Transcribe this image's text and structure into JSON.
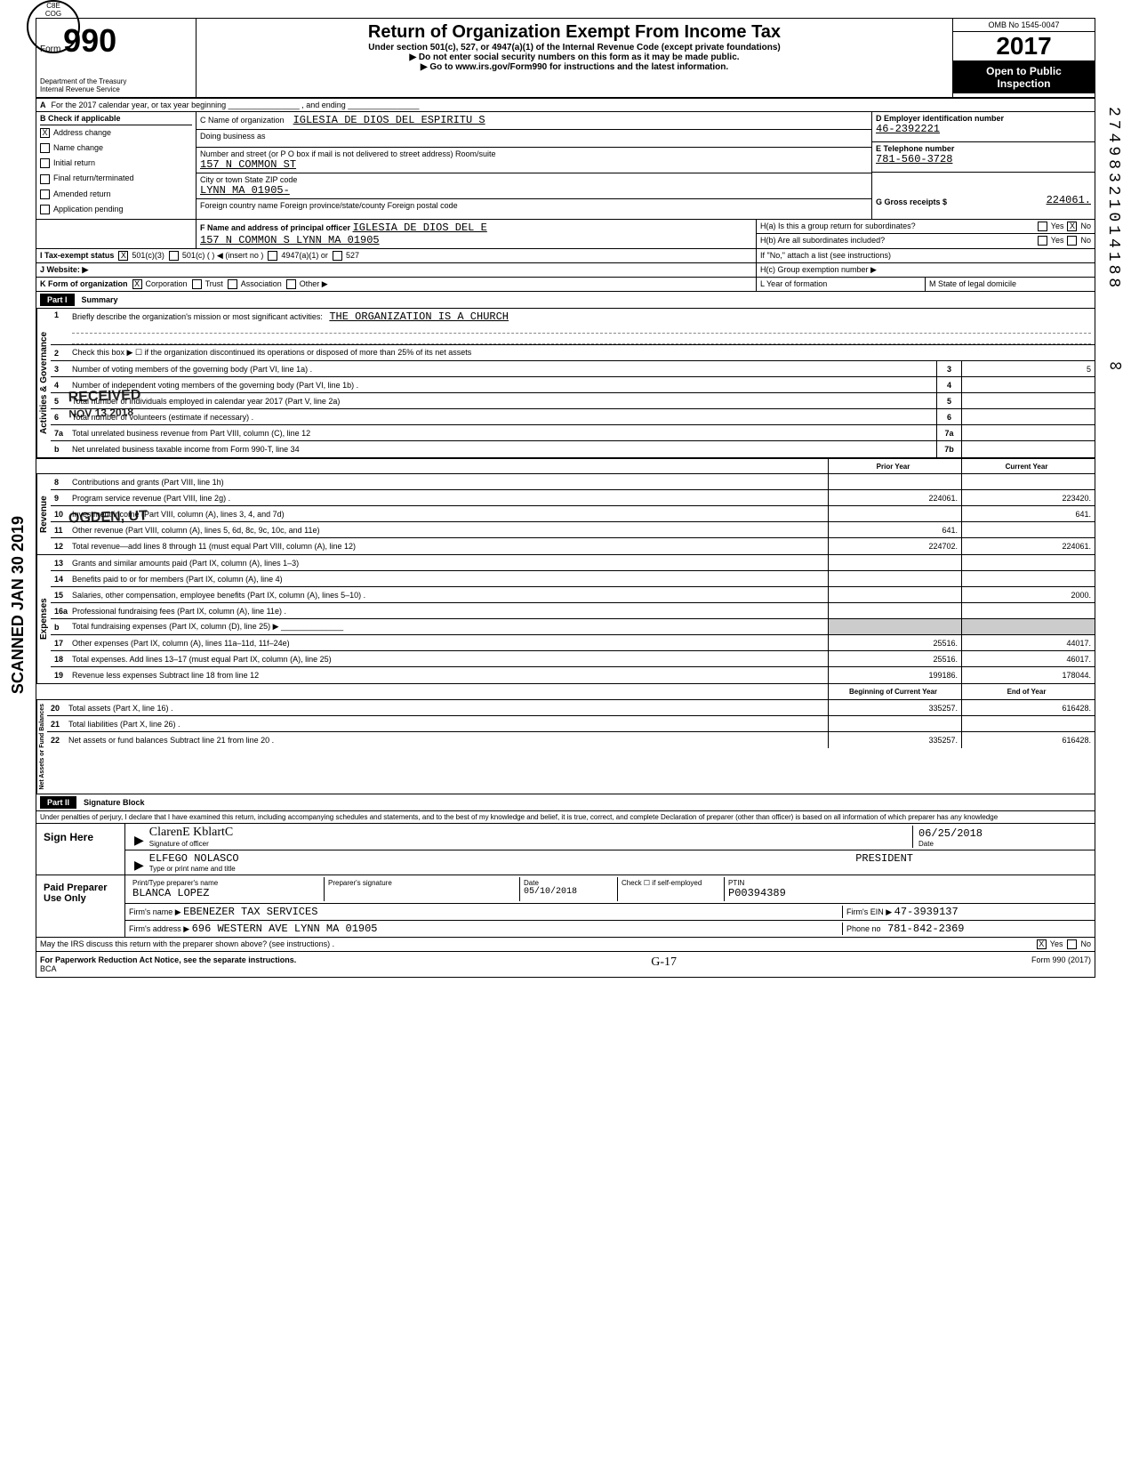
{
  "header": {
    "form_no": "990",
    "form_label": "Form",
    "title": "Return of Organization Exempt From Income Tax",
    "subtitle": "Under section 501(c), 527, or 4947(a)(1) of the Internal Revenue Code (except private foundations)",
    "notice1": "▶ Do not enter social security numbers on this form as it may be made public.",
    "notice2": "▶ Go to www.irs.gov/Form990 for instructions and the latest information.",
    "dept1": "Department of the Treasury",
    "dept2": "Internal Revenue Service",
    "omb": "OMB No 1545-0047",
    "year": "2017",
    "year_prefix_digits": "20",
    "year_suffix_digits": "17",
    "open1": "Open to Public",
    "open2": "Inspection"
  },
  "lineA": "For the 2017 calendar year, or tax year beginning ________________ , and ending ________________",
  "boxB": {
    "label": "Check if applicable",
    "items": [
      "Address change",
      "Name change",
      "Initial return",
      "Final return/terminated",
      "Amended return",
      "Application pending"
    ],
    "checked_idx": 0
  },
  "boxC": {
    "label_name": "C  Name of organization",
    "name": "IGLESIA DE DIOS DEL ESPIRITU S",
    "dba_label": "Doing business as",
    "addr_label": "Number and street (or P O box if mail is not delivered to street address)   Room/suite",
    "addr": "157 N COMMON ST",
    "city_label": "City or town                                              State              ZIP code",
    "city": "LYNN MA 01905-",
    "foreign_label": "Foreign country name              Foreign province/state/county          Foreign postal code"
  },
  "boxD": {
    "label": "D  Employer identification number",
    "value": "46-2392221"
  },
  "boxE": {
    "label": "E  Telephone number",
    "value": "781-560-3728"
  },
  "boxG": {
    "label": "G  Gross receipts $",
    "value": "224061."
  },
  "boxF": {
    "label": "F  Name and address of principal officer",
    "name": "IGLESIA DE DIOS DEL E",
    "addr": "157 N COMMON S LYNN        MA 01905"
  },
  "boxH": {
    "a": "H(a) Is this a group return for subordinates?",
    "a_yes": "Yes",
    "a_no": "No",
    "a_checked": "no",
    "b": "H(b) Are all subordinates included?",
    "b_yes": "Yes",
    "b_no": "No",
    "b_note": "If \"No,\" attach a list (see instructions)",
    "c": "H(c) Group exemption number ▶"
  },
  "boxI": {
    "label": "I   Tax-exempt status",
    "opts": [
      "501(c)(3)",
      "501(c)  (        ) ◀ (insert no )",
      "4947(a)(1) or",
      "527"
    ],
    "checked_idx": 0
  },
  "boxJ": {
    "label": "J  Website: ▶"
  },
  "boxK": {
    "label": "K  Form of organization",
    "opts": [
      "Corporation",
      "Trust",
      "Association",
      "Other ▶"
    ],
    "checked_idx": 0
  },
  "boxL": {
    "label": "L Year of formation"
  },
  "boxM": {
    "label": "M State of legal domicile"
  },
  "part1": {
    "tag": "Part I",
    "title": "Summary"
  },
  "governance": {
    "label": "Activities & Governance",
    "lines": [
      {
        "n": "1",
        "t": "Briefly describe the organization's mission or most significant activities:",
        "underline": "THE ORGANIZATION IS A CHURCH"
      },
      {
        "n": "2",
        "t": "Check this box ▶ ☐  if the organization discontinued its operations or disposed of more than 25% of its net assets"
      },
      {
        "n": "3",
        "t": "Number of voting members of the governing body (Part VI, line 1a) .",
        "box": "3",
        "val": "5"
      },
      {
        "n": "4",
        "t": "Number of independent voting members of the governing body (Part VI, line 1b) .",
        "box": "4",
        "val": ""
      },
      {
        "n": "5",
        "t": "Total number of individuals employed in calendar year 2017 (Part V, line 2a)",
        "box": "5",
        "val": ""
      },
      {
        "n": "6",
        "t": "Total number of volunteers (estimate if necessary) .",
        "box": "6",
        "val": ""
      },
      {
        "n": "7a",
        "t": "Total unrelated business revenue from Part VIII, column (C), line 12",
        "box": "7a",
        "val": ""
      },
      {
        "n": "b",
        "t": "Net unrelated business taxable income from Form 990-T, line 34",
        "box": "7b",
        "val": ""
      }
    ]
  },
  "twocol_header": {
    "prior": "Prior Year",
    "current": "Current Year"
  },
  "revenue": {
    "label": "Revenue",
    "lines": [
      {
        "n": "8",
        "t": "Contributions and grants (Part VIII, line 1h)",
        "p": "",
        "c": ""
      },
      {
        "n": "9",
        "t": "Program service revenue (Part VIII, line 2g) .",
        "p": "224061.",
        "c": "223420."
      },
      {
        "n": "10",
        "t": "Investment income (Part VIII, column (A), lines 3, 4, and 7d)",
        "p": "",
        "c": "641."
      },
      {
        "n": "11",
        "t": "Other revenue (Part VIII, column (A), lines 5, 6d, 8c, 9c, 10c, and 11e)",
        "p": "641.",
        "c": ""
      },
      {
        "n": "12",
        "t": "Total revenue—add lines 8 through 11 (must equal Part VIII, column (A), line 12)",
        "p": "224702.",
        "c": "224061."
      }
    ]
  },
  "expenses": {
    "label": "Expenses",
    "lines": [
      {
        "n": "13",
        "t": "Grants and similar amounts paid (Part IX, column (A), lines 1–3)",
        "p": "",
        "c": ""
      },
      {
        "n": "14",
        "t": "Benefits paid to or for members (Part IX, column (A), line 4)",
        "p": "",
        "c": ""
      },
      {
        "n": "15",
        "t": "Salaries, other compensation, employee benefits (Part IX, column (A), lines 5–10) .",
        "p": "",
        "c": "2000."
      },
      {
        "n": "16a",
        "t": "Professional fundraising fees (Part IX, column (A), line 11e) .",
        "p": "",
        "c": ""
      },
      {
        "n": "b",
        "t": "Total fundraising expenses (Part IX, column (D), line 25) ▶ ______________",
        "p": "—",
        "c": "—"
      },
      {
        "n": "17",
        "t": "Other expenses (Part IX, column (A), lines 11a–11d, 11f–24e)",
        "p": "25516.",
        "c": "44017."
      },
      {
        "n": "18",
        "t": "Total expenses. Add lines 13–17 (must equal Part IX, column (A), line 25)",
        "p": "25516.",
        "c": "46017."
      },
      {
        "n": "19",
        "t": "Revenue less expenses  Subtract line 18 from line 12",
        "p": "199186.",
        "c": "178044."
      }
    ]
  },
  "netassets_header": {
    "beg": "Beginning of Current Year",
    "end": "End of Year"
  },
  "netassets": {
    "label": "Net Assets or Fund Balances",
    "lines": [
      {
        "n": "20",
        "t": "Total assets (Part X, line 16) .",
        "p": "335257.",
        "c": "616428."
      },
      {
        "n": "21",
        "t": "Total liabilities (Part X, line 26) .",
        "p": "",
        "c": ""
      },
      {
        "n": "22",
        "t": "Net assets or fund balances  Subtract line 21 from line 20 .",
        "p": "335257.",
        "c": "616428."
      }
    ]
  },
  "part2": {
    "tag": "Part II",
    "title": "Signature Block"
  },
  "perjury": "Under penalties of perjury, I declare that I have examined this return, including accompanying schedules and statements, and to the best of my knowledge and belief, it is true, correct, and complete  Declaration of preparer (other than officer) is based on all information of which preparer has any knowledge",
  "sign": {
    "label": "Sign Here",
    "sig_label": "Signature of officer",
    "date_label": "Date",
    "date": "06/25/2018",
    "name": "ELFEGO NOLASCO",
    "title": "PRESIDENT",
    "name_label": "Type or print name and title"
  },
  "preparer": {
    "label": "Paid Preparer Use Only",
    "h_name": "Print/Type preparer's name",
    "h_sig": "Preparer's signature",
    "h_date": "Date",
    "h_check": "Check ☐ if self-employed",
    "h_ptin": "PTIN",
    "name": "BLANCA LOPEZ",
    "date": "05/10/2018",
    "ptin": "P00394389",
    "firm_label": "Firm's name ▶",
    "firm": "EBENEZER TAX SERVICES",
    "ein_label": "Firm's EIN ▶",
    "ein": "47-3939137",
    "addr_label": "Firm's address ▶",
    "addr": "696 WESTERN AVE      LYNN           MA 01905",
    "phone_label": "Phone no",
    "phone": "781-842-2369"
  },
  "discuss": {
    "text": "May the IRS discuss this return with the preparer shown above? (see instructions) .",
    "yes": "Yes",
    "no": "No",
    "checked": "yes"
  },
  "footer": {
    "left": "For Paperwork Reduction Act Notice, see the separate instructions.",
    "bca": "BCA",
    "hand": "G-17",
    "right": "Form 990 (2017)"
  },
  "stamps": {
    "received": "RECEIVED",
    "received_date": "NOV 13 2018",
    "ogden": "OGDEN, UT",
    "scan": "SCANNED JAN 30 2019",
    "side": "27498321014188",
    "infinity": "∞"
  },
  "colors": {
    "black": "#000000",
    "white": "#ffffff"
  }
}
